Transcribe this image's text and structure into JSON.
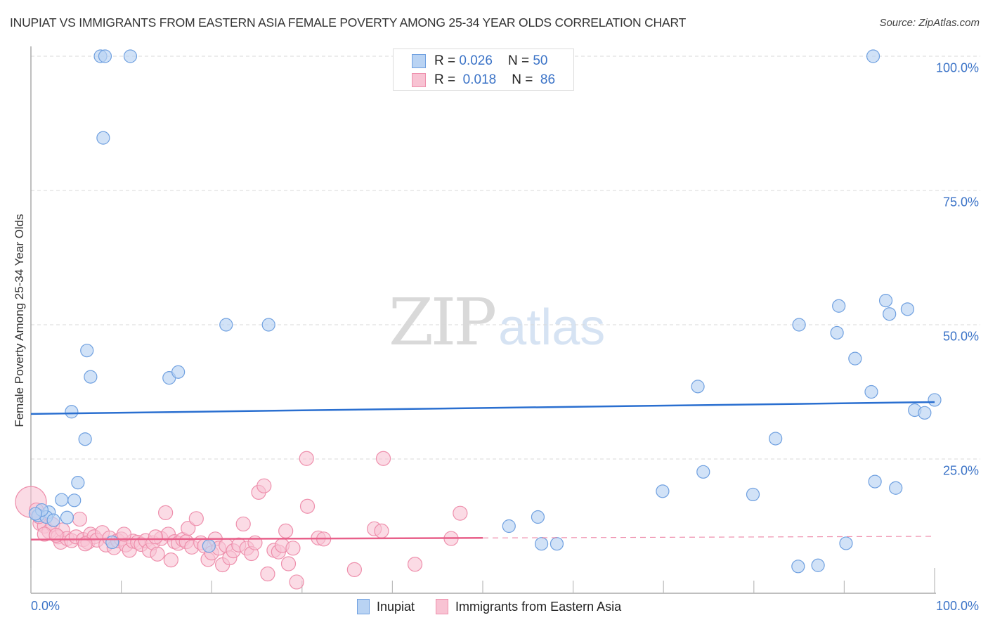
{
  "header": {
    "title": "INUPIAT VS IMMIGRANTS FROM EASTERN ASIA FEMALE POVERTY AMONG 25-34 YEAR OLDS CORRELATION CHART",
    "source": "Source: ZipAtlas.com"
  },
  "watermark": {
    "zip": "ZIP",
    "atlas": "atlas"
  },
  "legend_top": {
    "rows": [
      {
        "r_label": "R =",
        "r_value": "0.026",
        "n_label": "N =",
        "n_value": "50",
        "series": "Inupiat"
      },
      {
        "r_label": "R =",
        "r_value": "0.018",
        "n_label": "N =",
        "n_value": "86",
        "series": "Immigrants from Eastern Asia"
      }
    ]
  },
  "legend_bottom": {
    "items": [
      {
        "label": "Inupiat"
      },
      {
        "label": "Immigrants from Eastern Asia"
      }
    ]
  },
  "colors": {
    "inupiat_fill": "#b9d3f3",
    "inupiat_stroke": "#6fa0e0",
    "inupiat_line": "#2a6fd0",
    "immigrants_fill": "#f8c3d3",
    "immigrants_stroke": "#ee8fac",
    "immigrants_line": "#e8608a",
    "tick_label": "#3b73c7"
  },
  "axes": {
    "ylabel": "Female Poverty Among 25-34 Year Olds",
    "x_tick_labels": [
      "0.0%",
      "100.0%"
    ],
    "y_tick_labels": [
      "100.0%",
      "75.0%",
      "50.0%",
      "25.0%"
    ]
  },
  "chart_data": {
    "type": "scatter",
    "title": "INUPIAT VS IMMIGRANTS FROM EASTERN ASIA FEMALE POVERTY AMONG 25-34 YEAR OLDS CORRELATION CHART",
    "xlabel": "",
    "ylabel": "Female Poverty Among 25-34 Year Olds",
    "xlim": [
      0,
      100
    ],
    "ylim": [
      0,
      100
    ],
    "x_ticks": [
      0,
      10,
      20,
      30,
      40,
      50,
      60,
      70,
      80,
      90,
      100
    ],
    "y_ticks": [
      25,
      50,
      75,
      100
    ],
    "grid": "horizontal dashed at 25/50/75/100",
    "legend_position": "top-center",
    "series": [
      {
        "name": "Inupiat",
        "R": 0.026,
        "N": 50,
        "trend": {
          "x": [
            0,
            100
          ],
          "y": [
            33.4,
            35.6
          ],
          "style": "solid"
        },
        "points": [
          [
            7.7,
            100
          ],
          [
            8.2,
            100
          ],
          [
            11.0,
            100
          ],
          [
            93.2,
            100
          ],
          [
            8.0,
            84.8
          ],
          [
            21.6,
            50.0
          ],
          [
            26.3,
            50.0
          ],
          [
            6.2,
            45.2
          ],
          [
            6.6,
            40.3
          ],
          [
            15.3,
            40.1
          ],
          [
            16.3,
            41.2
          ],
          [
            4.5,
            33.8
          ],
          [
            6.0,
            28.7
          ],
          [
            5.2,
            20.6
          ],
          [
            3.4,
            17.4
          ],
          [
            4.8,
            17.3
          ],
          [
            2.0,
            15.1
          ],
          [
            0.8,
            14.5
          ],
          [
            1.7,
            14.2
          ],
          [
            2.5,
            13.6
          ],
          [
            4.0,
            14.1
          ],
          [
            1.2,
            15.5
          ],
          [
            0.5,
            14.8
          ],
          [
            9.0,
            9.5
          ],
          [
            19.7,
            8.8
          ],
          [
            52.9,
            12.5
          ],
          [
            56.1,
            14.2
          ],
          [
            56.5,
            9.2
          ],
          [
            58.2,
            9.2
          ],
          [
            69.9,
            19.0
          ],
          [
            73.8,
            38.5
          ],
          [
            74.4,
            22.6
          ],
          [
            79.9,
            18.4
          ],
          [
            82.4,
            28.8
          ],
          [
            84.9,
            5.0
          ],
          [
            87.1,
            5.2
          ],
          [
            85.0,
            50.0
          ],
          [
            89.2,
            48.5
          ],
          [
            91.2,
            43.7
          ],
          [
            89.4,
            53.5
          ],
          [
            93.0,
            37.5
          ],
          [
            94.6,
            54.5
          ],
          [
            95.0,
            52.0
          ],
          [
            97.0,
            52.9
          ],
          [
            93.4,
            20.8
          ],
          [
            95.7,
            19.6
          ],
          [
            97.8,
            34.1
          ],
          [
            98.9,
            33.6
          ],
          [
            100.0,
            36.0
          ],
          [
            90.2,
            9.3
          ]
        ]
      },
      {
        "name": "Immigrants from Eastern Asia",
        "R": 0.018,
        "N": 86,
        "trend": {
          "x": [
            0,
            100
          ],
          "y": [
            10.0,
            10.6
          ],
          "style": "solid to 50%, dashed beyond"
        },
        "points": [
          [
            0.0,
            17.0
          ],
          [
            0.6,
            15.5
          ],
          [
            1.0,
            13.0
          ],
          [
            1.5,
            12.5
          ],
          [
            2.0,
            11.5
          ],
          [
            2.4,
            12.8
          ],
          [
            3.0,
            10.5
          ],
          [
            3.3,
            9.5
          ],
          [
            3.5,
            11.8
          ],
          [
            4.0,
            10.2
          ],
          [
            4.5,
            9.8
          ],
          [
            5.0,
            10.5
          ],
          [
            5.4,
            13.8
          ],
          [
            5.8,
            10.0
          ],
          [
            6.3,
            9.5
          ],
          [
            6.6,
            11.0
          ],
          [
            7.0,
            10.5
          ],
          [
            7.3,
            9.9
          ],
          [
            7.9,
            11.3
          ],
          [
            8.3,
            9.0
          ],
          [
            8.7,
            10.3
          ],
          [
            9.2,
            8.5
          ],
          [
            9.6,
            9.8
          ],
          [
            10.0,
            10.1
          ],
          [
            10.5,
            9.0
          ],
          [
            10.9,
            8.0
          ],
          [
            11.3,
            9.7
          ],
          [
            11.8,
            9.5
          ],
          [
            12.2,
            9.1
          ],
          [
            12.7,
            9.8
          ],
          [
            13.1,
            8.0
          ],
          [
            13.5,
            9.4
          ],
          [
            14.0,
            7.3
          ],
          [
            14.4,
            10.2
          ],
          [
            14.9,
            15.0
          ],
          [
            15.2,
            11.0
          ],
          [
            15.5,
            6.2
          ],
          [
            15.9,
            9.6
          ],
          [
            16.3,
            9.3
          ],
          [
            16.8,
            10.0
          ],
          [
            17.2,
            9.6
          ],
          [
            17.4,
            12.1
          ],
          [
            17.8,
            8.6
          ],
          [
            18.3,
            13.9
          ],
          [
            18.8,
            9.4
          ],
          [
            19.2,
            8.8
          ],
          [
            19.6,
            6.3
          ],
          [
            20.0,
            7.5
          ],
          [
            20.4,
            10.1
          ],
          [
            20.8,
            8.4
          ],
          [
            21.2,
            5.3
          ],
          [
            21.6,
            8.9
          ],
          [
            22.0,
            6.6
          ],
          [
            22.4,
            7.9
          ],
          [
            23.0,
            9.0
          ],
          [
            23.5,
            12.9
          ],
          [
            23.9,
            8.4
          ],
          [
            24.4,
            7.4
          ],
          [
            24.8,
            9.4
          ],
          [
            25.2,
            18.8
          ],
          [
            25.8,
            20.0
          ],
          [
            26.2,
            3.6
          ],
          [
            26.9,
            8.0
          ],
          [
            27.4,
            7.7
          ],
          [
            27.8,
            8.9
          ],
          [
            28.2,
            11.6
          ],
          [
            28.5,
            5.5
          ],
          [
            29.0,
            8.4
          ],
          [
            29.4,
            2.1
          ],
          [
            30.5,
            25.1
          ],
          [
            30.6,
            16.2
          ],
          [
            31.8,
            10.3
          ],
          [
            32.4,
            10.1
          ],
          [
            35.8,
            4.4
          ],
          [
            38.0,
            12.0
          ],
          [
            38.8,
            11.6
          ],
          [
            39.0,
            25.1
          ],
          [
            42.5,
            5.4
          ],
          [
            47.5,
            14.9
          ],
          [
            46.5,
            10.2
          ],
          [
            1.5,
            11.0
          ],
          [
            2.8,
            10.8
          ],
          [
            13.8,
            10.5
          ],
          [
            10.3,
            11.0
          ],
          [
            6.0,
            9.2
          ],
          [
            0.9,
            14.3
          ]
        ]
      }
    ]
  }
}
